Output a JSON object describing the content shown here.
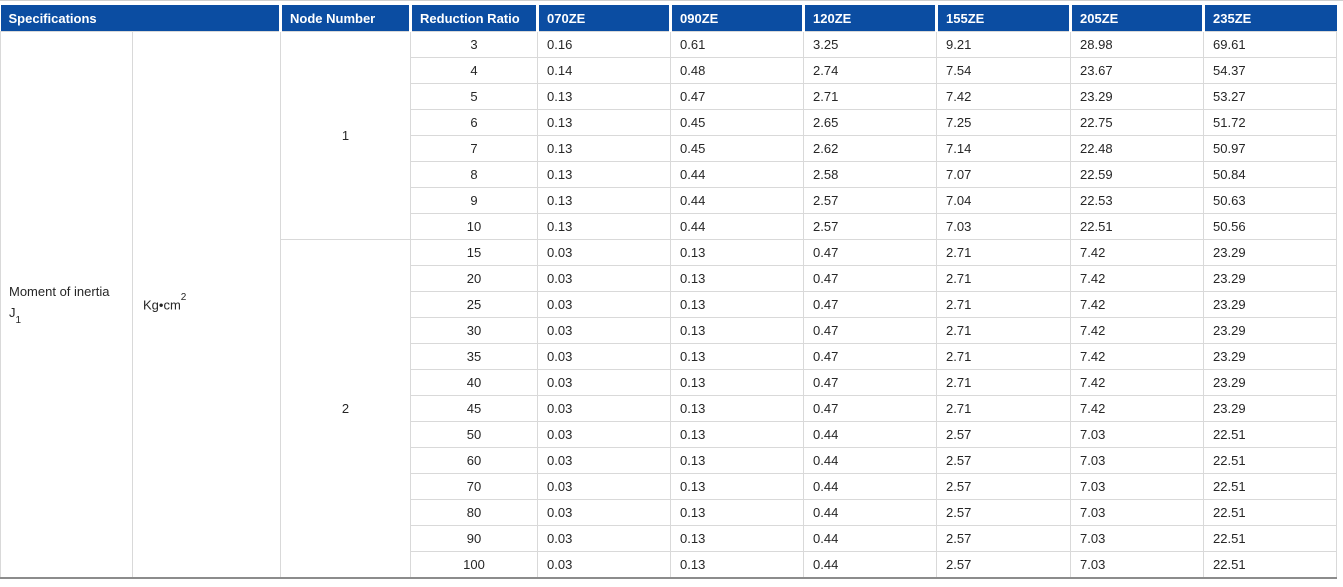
{
  "table": {
    "headers": {
      "specifications": "Specifications",
      "node_number": "Node Number",
      "reduction_ratio": "Reduction Ratio",
      "models": [
        "070ZE",
        "090ZE",
        "120ZE",
        "155ZE",
        "205ZE",
        "235ZE"
      ]
    },
    "spec": {
      "name_line1": "Moment of inertia",
      "name_symbol": "J",
      "name_subscript": "1",
      "unit_base": "Kg•cm",
      "unit_superscript": "2"
    },
    "groups": [
      {
        "node": "1",
        "rows": [
          {
            "ratio": "3",
            "values": [
              "0.16",
              "0.61",
              "3.25",
              "9.21",
              "28.98",
              "69.61"
            ]
          },
          {
            "ratio": "4",
            "values": [
              "0.14",
              "0.48",
              "2.74",
              "7.54",
              "23.67",
              "54.37"
            ]
          },
          {
            "ratio": "5",
            "values": [
              "0.13",
              "0.47",
              "2.71",
              "7.42",
              "23.29",
              "53.27"
            ]
          },
          {
            "ratio": "6",
            "values": [
              "0.13",
              "0.45",
              "2.65",
              "7.25",
              "22.75",
              "51.72"
            ]
          },
          {
            "ratio": "7",
            "values": [
              "0.13",
              "0.45",
              "2.62",
              "7.14",
              "22.48",
              "50.97"
            ]
          },
          {
            "ratio": "8",
            "values": [
              "0.13",
              "0.44",
              "2.58",
              "7.07",
              "22.59",
              "50.84"
            ]
          },
          {
            "ratio": "9",
            "values": [
              "0.13",
              "0.44",
              "2.57",
              "7.04",
              "22.53",
              "50.63"
            ]
          },
          {
            "ratio": "10",
            "values": [
              "0.13",
              "0.44",
              "2.57",
              "7.03",
              "22.51",
              "50.56"
            ]
          }
        ]
      },
      {
        "node": "2",
        "rows": [
          {
            "ratio": "15",
            "values": [
              "0.03",
              "0.13",
              "0.47",
              "2.71",
              "7.42",
              "23.29"
            ]
          },
          {
            "ratio": "20",
            "values": [
              "0.03",
              "0.13",
              "0.47",
              "2.71",
              "7.42",
              "23.29"
            ]
          },
          {
            "ratio": "25",
            "values": [
              "0.03",
              "0.13",
              "0.47",
              "2.71",
              "7.42",
              "23.29"
            ]
          },
          {
            "ratio": "30",
            "values": [
              "0.03",
              "0.13",
              "0.47",
              "2.71",
              "7.42",
              "23.29"
            ]
          },
          {
            "ratio": "35",
            "values": [
              "0.03",
              "0.13",
              "0.47",
              "2.71",
              "7.42",
              "23.29"
            ]
          },
          {
            "ratio": "40",
            "values": [
              "0.03",
              "0.13",
              "0.47",
              "2.71",
              "7.42",
              "23.29"
            ]
          },
          {
            "ratio": "45",
            "values": [
              "0.03",
              "0.13",
              "0.47",
              "2.71",
              "7.42",
              "23.29"
            ]
          },
          {
            "ratio": "50",
            "values": [
              "0.03",
              "0.13",
              "0.44",
              "2.57",
              "7.03",
              "22.51"
            ]
          },
          {
            "ratio": "60",
            "values": [
              "0.03",
              "0.13",
              "0.44",
              "2.57",
              "7.03",
              "22.51"
            ]
          },
          {
            "ratio": "70",
            "values": [
              "0.03",
              "0.13",
              "0.44",
              "2.57",
              "7.03",
              "22.51"
            ]
          },
          {
            "ratio": "80",
            "values": [
              "0.03",
              "0.13",
              "0.44",
              "2.57",
              "7.03",
              "22.51"
            ]
          },
          {
            "ratio": "90",
            "values": [
              "0.03",
              "0.13",
              "0.44",
              "2.57",
              "7.03",
              "22.51"
            ]
          },
          {
            "ratio": "100",
            "values": [
              "0.03",
              "0.13",
              "0.44",
              "2.57",
              "7.03",
              "22.51"
            ]
          }
        ]
      }
    ],
    "colors": {
      "header_bg": "#0b4da2",
      "header_text": "#ffffff",
      "grid": "#d9d9d9",
      "body_text": "#262626",
      "top_rule": "#cfcfcf",
      "bottom_rule": "#8c8c8c"
    }
  }
}
